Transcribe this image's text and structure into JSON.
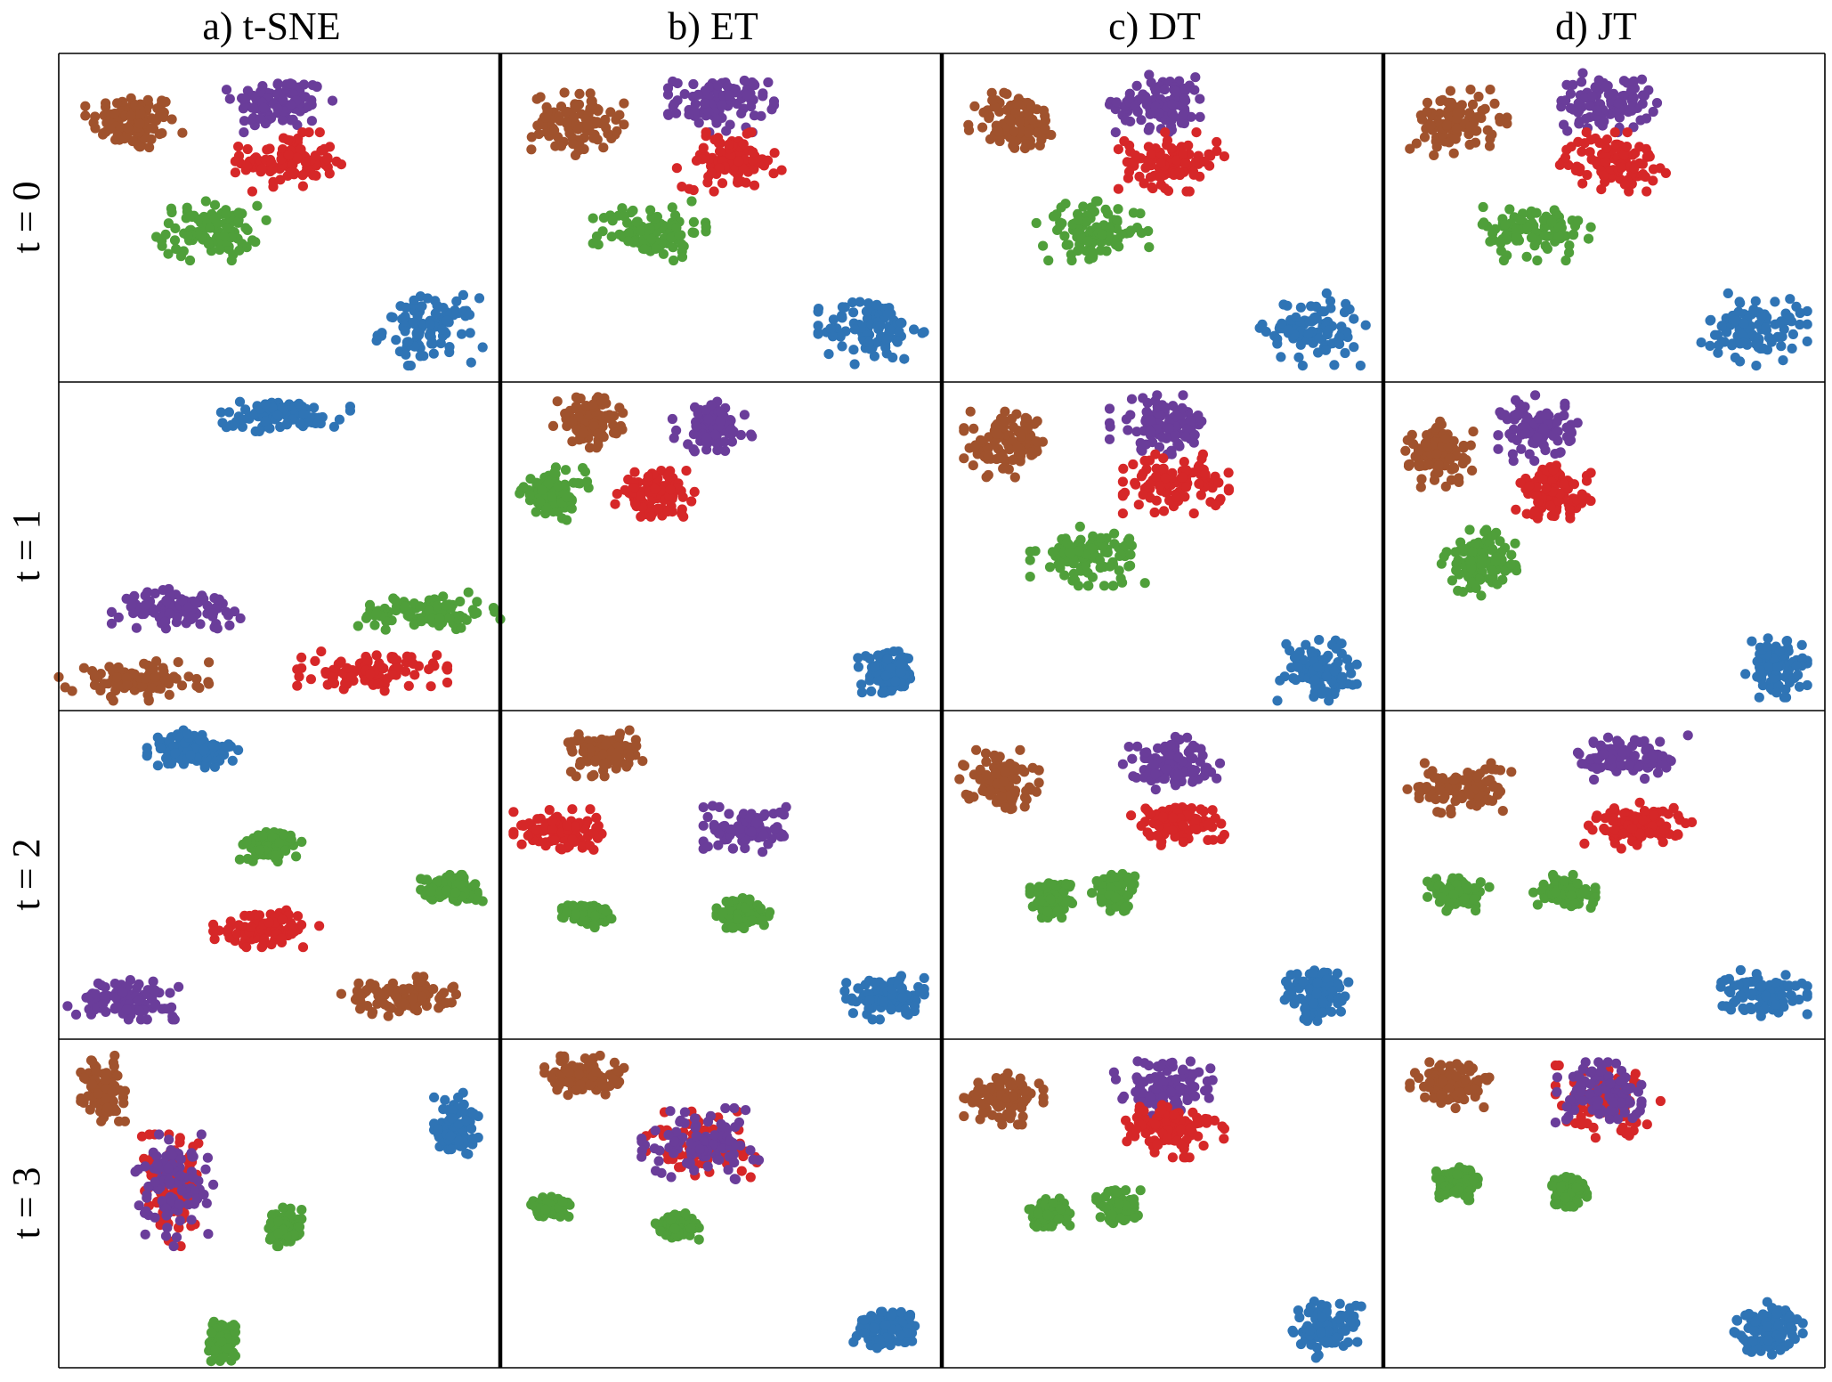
{
  "chart_data": {
    "type": "scatter",
    "grid": false,
    "legend": "none",
    "columns": [
      "a) t-SNE",
      "b) ET",
      "c) DT",
      "d) JT"
    ],
    "rows": [
      "t = 0",
      "t = 1",
      "t = 2",
      "t = 3"
    ],
    "colors": {
      "brown": "#a0522d",
      "purple": "#6a3d9a",
      "red": "#d62728",
      "green": "#4f9f3a",
      "blue": "#2f74b5"
    },
    "axis_range": {
      "x": [
        0,
        1
      ],
      "y": [
        0,
        1
      ]
    },
    "panels": [
      [
        {
          "clusters": [
            {
              "color": "brown",
              "x": 0.17,
              "y": 0.79,
              "rx": 0.11,
              "ry": 0.1
            },
            {
              "color": "purple",
              "x": 0.5,
              "y": 0.85,
              "rx": 0.12,
              "ry": 0.09
            },
            {
              "color": "red",
              "x": 0.52,
              "y": 0.67,
              "rx": 0.12,
              "ry": 0.09
            },
            {
              "color": "green",
              "x": 0.34,
              "y": 0.46,
              "rx": 0.13,
              "ry": 0.09
            },
            {
              "color": "blue",
              "x": 0.84,
              "y": 0.16,
              "rx": 0.12,
              "ry": 0.11
            }
          ]
        },
        {
          "clusters": [
            {
              "color": "brown",
              "x": 0.17,
              "y": 0.79,
              "rx": 0.11,
              "ry": 0.1
            },
            {
              "color": "purple",
              "x": 0.5,
              "y": 0.85,
              "rx": 0.12,
              "ry": 0.09
            },
            {
              "color": "red",
              "x": 0.52,
              "y": 0.67,
              "rx": 0.12,
              "ry": 0.09
            },
            {
              "color": "green",
              "x": 0.34,
              "y": 0.46,
              "rx": 0.13,
              "ry": 0.09
            },
            {
              "color": "blue",
              "x": 0.84,
              "y": 0.16,
              "rx": 0.12,
              "ry": 0.11
            }
          ]
        },
        {
          "clusters": [
            {
              "color": "brown",
              "x": 0.17,
              "y": 0.79,
              "rx": 0.11,
              "ry": 0.1
            },
            {
              "color": "purple",
              "x": 0.5,
              "y": 0.85,
              "rx": 0.12,
              "ry": 0.09
            },
            {
              "color": "red",
              "x": 0.52,
              "y": 0.67,
              "rx": 0.12,
              "ry": 0.09
            },
            {
              "color": "green",
              "x": 0.34,
              "y": 0.46,
              "rx": 0.13,
              "ry": 0.09
            },
            {
              "color": "blue",
              "x": 0.84,
              "y": 0.16,
              "rx": 0.12,
              "ry": 0.11
            }
          ]
        },
        {
          "clusters": [
            {
              "color": "brown",
              "x": 0.17,
              "y": 0.79,
              "rx": 0.11,
              "ry": 0.1
            },
            {
              "color": "purple",
              "x": 0.5,
              "y": 0.85,
              "rx": 0.12,
              "ry": 0.09
            },
            {
              "color": "red",
              "x": 0.52,
              "y": 0.67,
              "rx": 0.12,
              "ry": 0.09
            },
            {
              "color": "green",
              "x": 0.34,
              "y": 0.46,
              "rx": 0.13,
              "ry": 0.09
            },
            {
              "color": "blue",
              "x": 0.84,
              "y": 0.16,
              "rx": 0.12,
              "ry": 0.11
            }
          ]
        }
      ],
      [
        {
          "clusters": [
            {
              "color": "blue",
              "x": 0.5,
              "y": 0.9,
              "rx": 0.16,
              "ry": 0.05
            },
            {
              "color": "purple",
              "x": 0.28,
              "y": 0.31,
              "rx": 0.16,
              "ry": 0.06
            },
            {
              "color": "green",
              "x": 0.83,
              "y": 0.3,
              "rx": 0.17,
              "ry": 0.06
            },
            {
              "color": "brown",
              "x": 0.17,
              "y": 0.09,
              "rx": 0.17,
              "ry": 0.06
            },
            {
              "color": "red",
              "x": 0.71,
              "y": 0.12,
              "rx": 0.17,
              "ry": 0.06
            }
          ]
        },
        {
          "clusters": [
            {
              "color": "brown",
              "x": 0.2,
              "y": 0.88,
              "rx": 0.08,
              "ry": 0.08
            },
            {
              "color": "purple",
              "x": 0.48,
              "y": 0.86,
              "rx": 0.09,
              "ry": 0.08
            },
            {
              "color": "green",
              "x": 0.12,
              "y": 0.66,
              "rx": 0.08,
              "ry": 0.08
            },
            {
              "color": "red",
              "x": 0.35,
              "y": 0.66,
              "rx": 0.09,
              "ry": 0.07
            },
            {
              "color": "blue",
              "x": 0.88,
              "y": 0.11,
              "rx": 0.07,
              "ry": 0.07
            }
          ]
        },
        {
          "clusters": [
            {
              "color": "brown",
              "x": 0.15,
              "y": 0.81,
              "rx": 0.1,
              "ry": 0.1
            },
            {
              "color": "purple",
              "x": 0.5,
              "y": 0.87,
              "rx": 0.12,
              "ry": 0.09
            },
            {
              "color": "red",
              "x": 0.53,
              "y": 0.69,
              "rx": 0.12,
              "ry": 0.09
            },
            {
              "color": "green",
              "x": 0.33,
              "y": 0.47,
              "rx": 0.13,
              "ry": 0.09
            },
            {
              "color": "blue",
              "x": 0.85,
              "y": 0.13,
              "rx": 0.09,
              "ry": 0.1
            }
          ]
        },
        {
          "clusters": [
            {
              "color": "brown",
              "x": 0.13,
              "y": 0.78,
              "rx": 0.08,
              "ry": 0.1
            },
            {
              "color": "purple",
              "x": 0.35,
              "y": 0.86,
              "rx": 0.09,
              "ry": 0.1
            },
            {
              "color": "red",
              "x": 0.39,
              "y": 0.66,
              "rx": 0.09,
              "ry": 0.09
            },
            {
              "color": "green",
              "x": 0.22,
              "y": 0.45,
              "rx": 0.09,
              "ry": 0.1
            },
            {
              "color": "blue",
              "x": 0.89,
              "y": 0.13,
              "rx": 0.07,
              "ry": 0.09
            }
          ]
        }
      ],
      [
        {
          "clusters": [
            {
              "color": "blue",
              "x": 0.31,
              "y": 0.88,
              "rx": 0.11,
              "ry": 0.06
            },
            {
              "color": "green",
              "x": 0.48,
              "y": 0.59,
              "rx": 0.07,
              "ry": 0.05
            },
            {
              "color": "green",
              "x": 0.89,
              "y": 0.46,
              "rx": 0.07,
              "ry": 0.04
            },
            {
              "color": "red",
              "x": 0.47,
              "y": 0.34,
              "rx": 0.12,
              "ry": 0.06
            },
            {
              "color": "purple",
              "x": 0.15,
              "y": 0.12,
              "rx": 0.13,
              "ry": 0.06
            },
            {
              "color": "brown",
              "x": 0.77,
              "y": 0.13,
              "rx": 0.13,
              "ry": 0.06
            }
          ]
        },
        {
          "clusters": [
            {
              "color": "brown",
              "x": 0.24,
              "y": 0.87,
              "rx": 0.09,
              "ry": 0.07
            },
            {
              "color": "red",
              "x": 0.13,
              "y": 0.63,
              "rx": 0.1,
              "ry": 0.07
            },
            {
              "color": "purple",
              "x": 0.56,
              "y": 0.64,
              "rx": 0.1,
              "ry": 0.07
            },
            {
              "color": "green",
              "x": 0.2,
              "y": 0.38,
              "rx": 0.06,
              "ry": 0.04
            },
            {
              "color": "green",
              "x": 0.55,
              "y": 0.38,
              "rx": 0.06,
              "ry": 0.05
            },
            {
              "color": "blue",
              "x": 0.87,
              "y": 0.13,
              "rx": 0.09,
              "ry": 0.07
            }
          ]
        },
        {
          "clusters": [
            {
              "color": "brown",
              "x": 0.13,
              "y": 0.79,
              "rx": 0.09,
              "ry": 0.09
            },
            {
              "color": "purple",
              "x": 0.52,
              "y": 0.84,
              "rx": 0.11,
              "ry": 0.08
            },
            {
              "color": "red",
              "x": 0.53,
              "y": 0.66,
              "rx": 0.11,
              "ry": 0.07
            },
            {
              "color": "green",
              "x": 0.25,
              "y": 0.43,
              "rx": 0.05,
              "ry": 0.06
            },
            {
              "color": "green",
              "x": 0.39,
              "y": 0.45,
              "rx": 0.05,
              "ry": 0.06
            },
            {
              "color": "blue",
              "x": 0.85,
              "y": 0.13,
              "rx": 0.08,
              "ry": 0.09
            }
          ]
        },
        {
          "clusters": [
            {
              "color": "brown",
              "x": 0.17,
              "y": 0.76,
              "rx": 0.12,
              "ry": 0.08
            },
            {
              "color": "purple",
              "x": 0.56,
              "y": 0.86,
              "rx": 0.13,
              "ry": 0.07
            },
            {
              "color": "red",
              "x": 0.58,
              "y": 0.65,
              "rx": 0.13,
              "ry": 0.07
            },
            {
              "color": "green",
              "x": 0.17,
              "y": 0.44,
              "rx": 0.07,
              "ry": 0.05
            },
            {
              "color": "green",
              "x": 0.41,
              "y": 0.45,
              "rx": 0.07,
              "ry": 0.05
            },
            {
              "color": "blue",
              "x": 0.86,
              "y": 0.14,
              "rx": 0.1,
              "ry": 0.07
            }
          ]
        }
      ],
      [
        {
          "clusters": [
            {
              "color": "brown",
              "x": 0.1,
              "y": 0.85,
              "rx": 0.05,
              "ry": 0.1
            },
            {
              "color": "red",
              "x": 0.26,
              "y": 0.54,
              "rx": 0.08,
              "ry": 0.17
            },
            {
              "color": "purple",
              "x": 0.26,
              "y": 0.54,
              "rx": 0.09,
              "ry": 0.17
            },
            {
              "color": "green",
              "x": 0.51,
              "y": 0.43,
              "rx": 0.04,
              "ry": 0.06
            },
            {
              "color": "green",
              "x": 0.37,
              "y": 0.08,
              "rx": 0.03,
              "ry": 0.06
            },
            {
              "color": "blue",
              "x": 0.9,
              "y": 0.74,
              "rx": 0.05,
              "ry": 0.1
            }
          ]
        },
        {
          "clusters": [
            {
              "color": "brown",
              "x": 0.19,
              "y": 0.89,
              "rx": 0.09,
              "ry": 0.06
            },
            {
              "color": "red",
              "x": 0.46,
              "y": 0.68,
              "rx": 0.13,
              "ry": 0.1
            },
            {
              "color": "purple",
              "x": 0.46,
              "y": 0.68,
              "rx": 0.14,
              "ry": 0.11
            },
            {
              "color": "green",
              "x": 0.11,
              "y": 0.49,
              "rx": 0.05,
              "ry": 0.03
            },
            {
              "color": "green",
              "x": 0.4,
              "y": 0.43,
              "rx": 0.05,
              "ry": 0.04
            },
            {
              "color": "blue",
              "x": 0.88,
              "y": 0.12,
              "rx": 0.08,
              "ry": 0.06
            }
          ]
        },
        {
          "clusters": [
            {
              "color": "brown",
              "x": 0.14,
              "y": 0.82,
              "rx": 0.09,
              "ry": 0.08
            },
            {
              "color": "purple",
              "x": 0.51,
              "y": 0.85,
              "rx": 0.12,
              "ry": 0.1
            },
            {
              "color": "red",
              "x": 0.52,
              "y": 0.73,
              "rx": 0.12,
              "ry": 0.09
            },
            {
              "color": "green",
              "x": 0.24,
              "y": 0.47,
              "rx": 0.05,
              "ry": 0.05
            },
            {
              "color": "green",
              "x": 0.4,
              "y": 0.49,
              "rx": 0.05,
              "ry": 0.05
            },
            {
              "color": "blue",
              "x": 0.87,
              "y": 0.12,
              "rx": 0.08,
              "ry": 0.09
            }
          ]
        },
        {
          "clusters": [
            {
              "color": "brown",
              "x": 0.15,
              "y": 0.86,
              "rx": 0.09,
              "ry": 0.07
            },
            {
              "color": "red",
              "x": 0.51,
              "y": 0.81,
              "rx": 0.12,
              "ry": 0.11
            },
            {
              "color": "purple",
              "x": 0.51,
              "y": 0.83,
              "rx": 0.12,
              "ry": 0.1
            },
            {
              "color": "green",
              "x": 0.17,
              "y": 0.56,
              "rx": 0.05,
              "ry": 0.05
            },
            {
              "color": "green",
              "x": 0.42,
              "y": 0.54,
              "rx": 0.05,
              "ry": 0.05
            },
            {
              "color": "blue",
              "x": 0.87,
              "y": 0.12,
              "rx": 0.08,
              "ry": 0.08
            }
          ]
        }
      ]
    ]
  }
}
